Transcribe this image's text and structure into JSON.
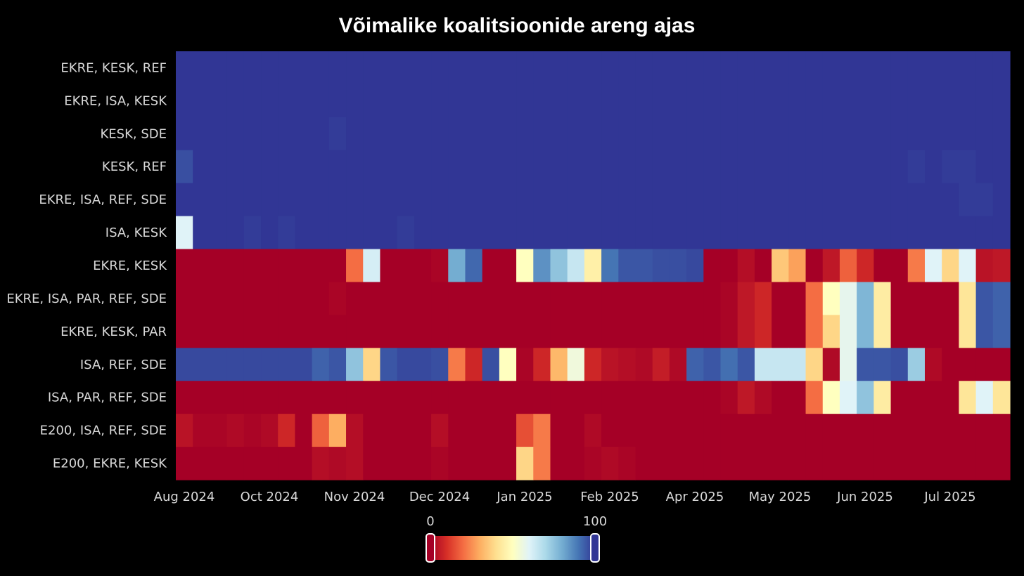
{
  "chart_data": {
    "type": "heatmap",
    "title": "Võimalike koalitsioonide areng ajas",
    "rows": [
      "EKRE, KESK, REF",
      "EKRE, ISA, KESK",
      "KESK, SDE",
      "KESK, REF",
      "EKRE, ISA, REF, SDE",
      "ISA, KESK",
      "EKRE, KESK",
      "EKRE, ISA, PAR, REF, SDE",
      "EKRE, KESK, PAR",
      "ISA, REF, SDE",
      "ISA, PAR, REF, SDE",
      "E200, ISA, REF, SDE",
      "E200, EKRE, KESK"
    ],
    "x_ticks": [
      "Aug 2024",
      "Oct 2024",
      "Nov 2024",
      "Dec 2024",
      "Jan 2025",
      "Feb 2025",
      "Apr 2025",
      "May 2025",
      "Jun 2025",
      "Jul 2025"
    ],
    "n_columns": 49,
    "values": [
      [
        100,
        100,
        100,
        100,
        100,
        100,
        100,
        100,
        100,
        100,
        100,
        100,
        100,
        100,
        100,
        100,
        100,
        100,
        100,
        100,
        100,
        100,
        100,
        100,
        100,
        100,
        100,
        100,
        100,
        100,
        100,
        100,
        100,
        100,
        100,
        100,
        100,
        100,
        100,
        100,
        100,
        100,
        100,
        100,
        100,
        100,
        100,
        100,
        100
      ],
      [
        100,
        100,
        100,
        100,
        100,
        100,
        100,
        100,
        100,
        100,
        100,
        100,
        100,
        100,
        100,
        100,
        100,
        100,
        100,
        100,
        100,
        100,
        100,
        100,
        100,
        100,
        100,
        100,
        100,
        100,
        100,
        100,
        100,
        100,
        100,
        100,
        100,
        100,
        100,
        100,
        100,
        100,
        100,
        100,
        100,
        100,
        100,
        100,
        100
      ],
      [
        100,
        100,
        100,
        100,
        100,
        100,
        100,
        100,
        100,
        99,
        100,
        100,
        100,
        100,
        100,
        100,
        100,
        100,
        100,
        100,
        100,
        100,
        100,
        100,
        100,
        100,
        100,
        100,
        100,
        100,
        100,
        100,
        100,
        100,
        100,
        100,
        100,
        100,
        100,
        100,
        100,
        100,
        100,
        100,
        100,
        100,
        100,
        100,
        100
      ],
      [
        96,
        100,
        100,
        100,
        100,
        100,
        100,
        100,
        100,
        100,
        100,
        100,
        100,
        100,
        100,
        100,
        100,
        100,
        100,
        100,
        100,
        100,
        100,
        100,
        100,
        100,
        100,
        100,
        100,
        100,
        100,
        100,
        100,
        100,
        100,
        100,
        100,
        100,
        100,
        100,
        100,
        100,
        100,
        99,
        100,
        99,
        99,
        100,
        100
      ],
      [
        100,
        100,
        100,
        100,
        100,
        100,
        100,
        100,
        100,
        100,
        100,
        100,
        100,
        100,
        100,
        100,
        100,
        100,
        100,
        100,
        100,
        100,
        100,
        100,
        100,
        100,
        100,
        100,
        100,
        100,
        100,
        100,
        100,
        100,
        100,
        100,
        100,
        100,
        100,
        100,
        100,
        100,
        100,
        100,
        100,
        100,
        99,
        99,
        100
      ],
      [
        60,
        100,
        100,
        100,
        99,
        100,
        99,
        100,
        100,
        100,
        100,
        100,
        100,
        99,
        100,
        100,
        100,
        100,
        100,
        100,
        100,
        100,
        100,
        100,
        100,
        100,
        100,
        100,
        100,
        100,
        100,
        100,
        100,
        100,
        100,
        100,
        100,
        100,
        100,
        100,
        100,
        100,
        100,
        100,
        100,
        100,
        100,
        100,
        100
      ],
      [
        0,
        0,
        0,
        0,
        0,
        0,
        0,
        0,
        0,
        0,
        20,
        62,
        0,
        0,
        0,
        1,
        80,
        92,
        0,
        0,
        50,
        85,
        75,
        65,
        45,
        90,
        95,
        95,
        96,
        96,
        97,
        0,
        0,
        3,
        0,
        35,
        28,
        0,
        5,
        18,
        8,
        0,
        0,
        22,
        60,
        38,
        60,
        4,
        5
      ],
      [
        0,
        0,
        0,
        0,
        0,
        0,
        0,
        0,
        0,
        1,
        0,
        0,
        0,
        0,
        0,
        0,
        0,
        0,
        0,
        0,
        0,
        0,
        0,
        0,
        0,
        0,
        0,
        0,
        0,
        0,
        0,
        0,
        1,
        5,
        8,
        0,
        0,
        20,
        50,
        58,
        78,
        44,
        0,
        0,
        0,
        0,
        42,
        95,
        93
      ],
      [
        0,
        0,
        0,
        0,
        0,
        0,
        0,
        0,
        0,
        0,
        0,
        0,
        0,
        0,
        0,
        0,
        0,
        0,
        0,
        0,
        0,
        0,
        0,
        0,
        0,
        0,
        0,
        0,
        0,
        0,
        0,
        0,
        1,
        5,
        8,
        0,
        0,
        20,
        38,
        58,
        78,
        44,
        0,
        0,
        0,
        0,
        42,
        95,
        93
      ],
      [
        97,
        97,
        97,
        97,
        97,
        97,
        97,
        97,
        93,
        95,
        75,
        38,
        95,
        97,
        97,
        96,
        22,
        8,
        96,
        50,
        1,
        8,
        32,
        55,
        8,
        4,
        3,
        2,
        6,
        2,
        93,
        95,
        91,
        95,
        65,
        65,
        65,
        38,
        2,
        58,
        95,
        95,
        96,
        73,
        2,
        0,
        0,
        0,
        0
      ],
      [
        0,
        0,
        0,
        0,
        0,
        0,
        0,
        0,
        0,
        0,
        0,
        0,
        0,
        0,
        0,
        0,
        0,
        0,
        0,
        0,
        0,
        0,
        0,
        0,
        0,
        0,
        0,
        0,
        0,
        0,
        0,
        0,
        1,
        5,
        2,
        0,
        0,
        20,
        50,
        60,
        75,
        44,
        0,
        0,
        0,
        0,
        42,
        60,
        42
      ],
      [
        4,
        1,
        1,
        2,
        1,
        2,
        8,
        0,
        18,
        30,
        3,
        0,
        0,
        0,
        0,
        3,
        0,
        0,
        0,
        0,
        15,
        22,
        0,
        0,
        2,
        0,
        0,
        0,
        0,
        0,
        0,
        0,
        0,
        0,
        0,
        0,
        0,
        0,
        0,
        0,
        0,
        0,
        0,
        0,
        0,
        0,
        0,
        0,
        0
      ],
      [
        0,
        0,
        0,
        0,
        0,
        0,
        0,
        0,
        3,
        2,
        3,
        0,
        0,
        0,
        0,
        1,
        0,
        0,
        0,
        0,
        38,
        22,
        0,
        0,
        1,
        2,
        1,
        0,
        0,
        0,
        0,
        0,
        0,
        0,
        0,
        0,
        0,
        0,
        0,
        0,
        0,
        0,
        0,
        0,
        0,
        0,
        0,
        0,
        0
      ]
    ],
    "colorbar": {
      "min_label": "0",
      "max_label": "100",
      "vmin": 0,
      "vmax": 100,
      "colorscale": [
        "#a50026",
        "#d73027",
        "#f46d43",
        "#fdae61",
        "#fee090",
        "#ffffbf",
        "#e0f3f8",
        "#abd9e9",
        "#74add1",
        "#4575b4",
        "#313695"
      ]
    }
  }
}
